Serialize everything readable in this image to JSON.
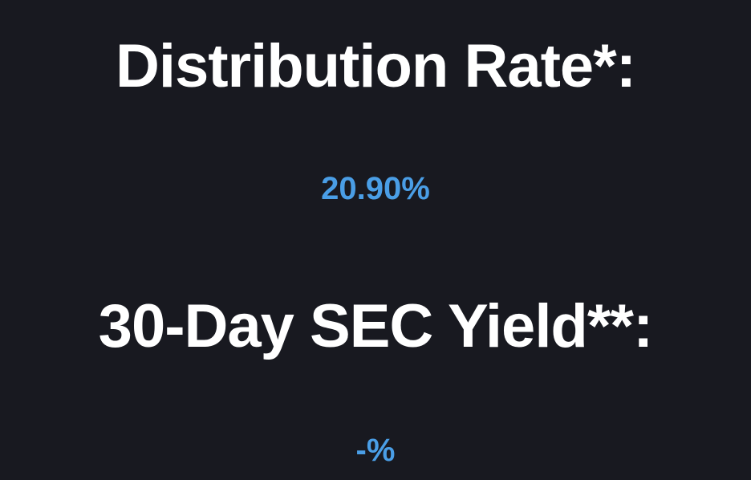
{
  "theme": {
    "background": "#181920",
    "label_color": "#ffffff",
    "value_color": "#4a9ee6"
  },
  "stats": [
    {
      "label": "Distribution Rate*:",
      "value": "20.90%"
    },
    {
      "label": "30-Day SEC Yield**:",
      "value": "-%"
    }
  ]
}
